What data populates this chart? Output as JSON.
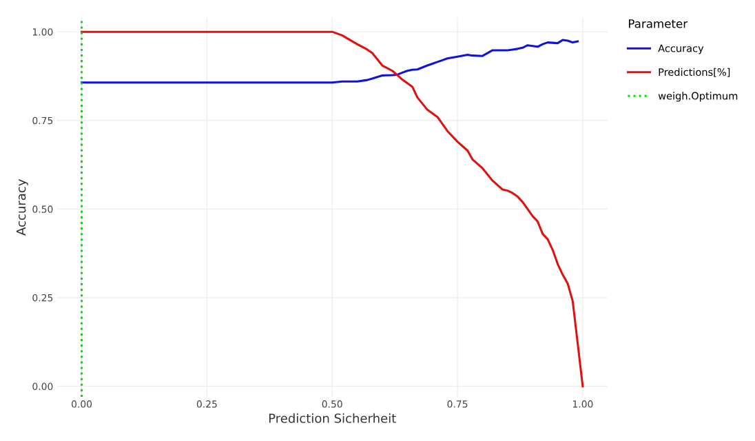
{
  "chart_data": {
    "type": "line",
    "xlabel": "Prediction Sicherheit",
    "ylabel": "Accuracy",
    "legend_title": "Parameter",
    "x": [
      0,
      0.1,
      0.2,
      0.3,
      0.4,
      0.5,
      0.52,
      0.55,
      0.57,
      0.58,
      0.6,
      0.62,
      0.63,
      0.64,
      0.65,
      0.66,
      0.67,
      0.69,
      0.7,
      0.71,
      0.72,
      0.73,
      0.75,
      0.77,
      0.78,
      0.8,
      0.82,
      0.84,
      0.85,
      0.86,
      0.87,
      0.88,
      0.89,
      0.9,
      0.91,
      0.92,
      0.93,
      0.94,
      0.95,
      0.96,
      0.97,
      0.98,
      0.99,
      1.0
    ],
    "series": [
      {
        "name": "Accuracy",
        "color": "#1010e0",
        "values": [
          0.857,
          0.857,
          0.857,
          0.857,
          0.857,
          0.857,
          0.86,
          0.86,
          0.864,
          0.868,
          0.877,
          0.878,
          0.879,
          0.885,
          0.89,
          0.893,
          0.894,
          0.905,
          0.91,
          0.915,
          0.92,
          0.925,
          0.93,
          0.935,
          0.933,
          0.932,
          0.948,
          0.948,
          0.948,
          0.95,
          0.952,
          0.955,
          0.962,
          0.96,
          0.958,
          0.965,
          0.97,
          0.969,
          0.968,
          0.977,
          0.975,
          0.97,
          0.973,
          null
        ]
      },
      {
        "name": "Predictions[%]",
        "color": "#e01010",
        "values": [
          1.0,
          1.0,
          1.0,
          1.0,
          1.0,
          1.0,
          0.99,
          0.965,
          0.95,
          0.94,
          0.905,
          0.89,
          0.878,
          0.865,
          0.855,
          0.845,
          0.815,
          0.78,
          0.77,
          0.76,
          0.74,
          0.72,
          0.69,
          0.665,
          0.64,
          0.615,
          0.58,
          0.555,
          0.552,
          0.545,
          0.535,
          0.52,
          0.5,
          0.48,
          0.465,
          0.43,
          0.415,
          0.385,
          0.345,
          0.315,
          0.29,
          0.24,
          0.12,
          0.0
        ]
      },
      {
        "name": "weigh.Optimum",
        "color": "#00e000",
        "line_style": "dotted",
        "x": [
          0,
          0
        ],
        "values": [
          -0.03,
          1.04
        ]
      }
    ],
    "xlim": [
      -0.05,
      1.05
    ],
    "ylim": [
      -0.03,
      1.04
    ],
    "xticks": [
      {
        "value": 0,
        "label": "0.00"
      },
      {
        "value": 0.25,
        "label": "0.25"
      },
      {
        "value": 0.5,
        "label": "0.50"
      },
      {
        "value": 0.75,
        "label": "0.75"
      },
      {
        "value": 1.0,
        "label": "1.00"
      }
    ],
    "yticks": [
      {
        "value": 0,
        "label": "0.00"
      },
      {
        "value": 0.25,
        "label": "0.25"
      },
      {
        "value": 0.5,
        "label": "0.50"
      },
      {
        "value": 0.75,
        "label": "0.75"
      },
      {
        "value": 1.0,
        "label": "1.00"
      }
    ],
    "grid": true,
    "legend": "top right",
    "marker": "none",
    "line_style": "solid"
  }
}
